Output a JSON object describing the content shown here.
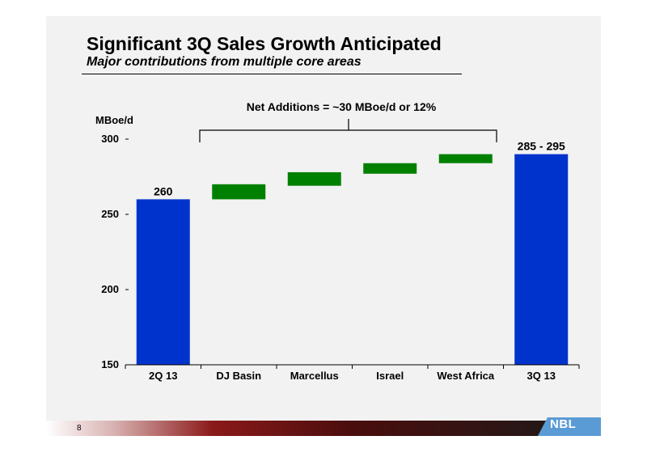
{
  "page": {
    "title": "Significant 3Q Sales Growth Anticipated",
    "subtitle": "Major contributions from multiple core areas",
    "page_number": "8",
    "logo_text": "NBL"
  },
  "colors": {
    "total_bar": "#0033cc",
    "increment_bar": "#008000",
    "background": "#f2f2f2"
  },
  "chart_data": {
    "type": "bar",
    "subtype": "waterfall",
    "title": "",
    "ylabel": "MBoe/d",
    "xlabel": "",
    "ylim": [
      150,
      300
    ],
    "yticks": [
      150,
      200,
      250,
      300
    ],
    "grid": false,
    "categories": [
      "2Q 13",
      "DJ Basin",
      "Marcellus",
      "Israel",
      "West Africa",
      "3Q 13"
    ],
    "bars": [
      {
        "category": "2Q 13",
        "kind": "total",
        "bottom": 150,
        "top": 260,
        "label": "260"
      },
      {
        "category": "DJ Basin",
        "kind": "increment",
        "bottom": 260,
        "top": 270,
        "label": ""
      },
      {
        "category": "Marcellus",
        "kind": "increment",
        "bottom": 269,
        "top": 278,
        "label": ""
      },
      {
        "category": "Israel",
        "kind": "increment",
        "bottom": 277,
        "top": 284,
        "label": ""
      },
      {
        "category": "West Africa",
        "kind": "increment",
        "bottom": 284,
        "top": 290,
        "label": ""
      },
      {
        "category": "3Q 13",
        "kind": "total",
        "bottom": 150,
        "top": 290,
        "label": "285 - 295"
      }
    ],
    "annotation": "Net Additions = ~30 MBoe/d or 12%"
  }
}
